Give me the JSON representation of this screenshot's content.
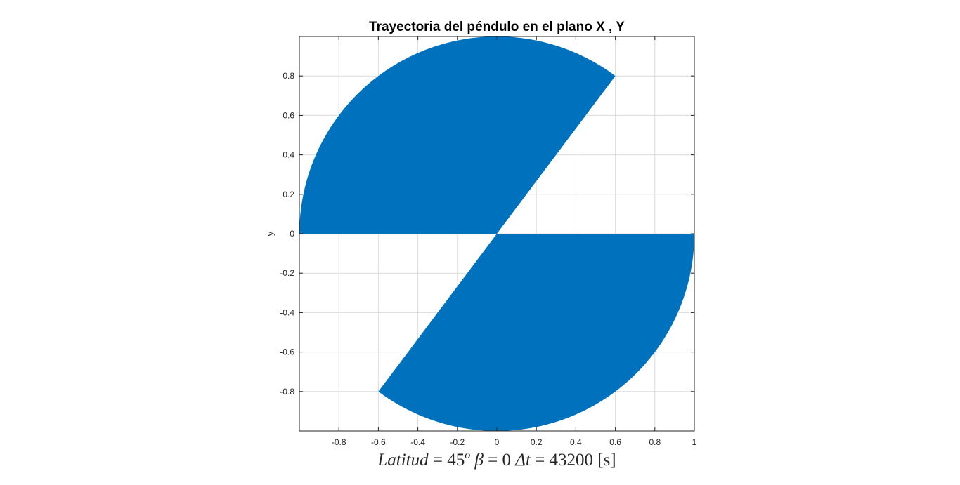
{
  "chart_data": {
    "type": "area",
    "title": "Trayectoria del péndulo en el plano X , Y",
    "ylabel": "y",
    "xlabel": {
      "var1": "Latitud",
      "eq1": " = 45",
      "sup1": "o",
      "var2": " β",
      "eq2": " = 0 ",
      "var3": "Δt",
      "eq3": " = 43200 [s]"
    },
    "xlim": [
      -1,
      1
    ],
    "ylim": [
      -1,
      1
    ],
    "grid": true,
    "xticks": [
      -0.8,
      -0.6,
      -0.4,
      -0.2,
      0,
      0.2,
      0.4,
      0.6,
      0.8,
      1
    ],
    "xtick_labels": [
      "-0.8",
      "-0.6",
      "-0.4",
      "-0.2",
      "0",
      "0.2",
      "0.4",
      "0.6",
      "0.8",
      "1"
    ],
    "yticks": [
      0.8,
      0.6,
      0.4,
      0.2,
      0,
      -0.2,
      -0.4,
      -0.6,
      -0.8
    ],
    "ytick_labels": [
      "0.8",
      "0.6",
      "0.4",
      "0.2",
      "0",
      "-0.2",
      "-0.4",
      "-0.6",
      "-0.8"
    ],
    "series": [
      {
        "shape": "circular-sector",
        "radius": 1,
        "start_angle_deg": 53.13,
        "end_angle_deg": 180,
        "edge_point": [
          0.6,
          0.8
        ]
      },
      {
        "shape": "circular-sector",
        "radius": 1,
        "start_angle_deg": 233.13,
        "end_angle_deg": 360,
        "edge_point": [
          -0.6,
          -0.8
        ]
      }
    ],
    "colors": {
      "fill": "#0072bd",
      "axis": "#262626",
      "grid": "#dcdcdc"
    }
  }
}
